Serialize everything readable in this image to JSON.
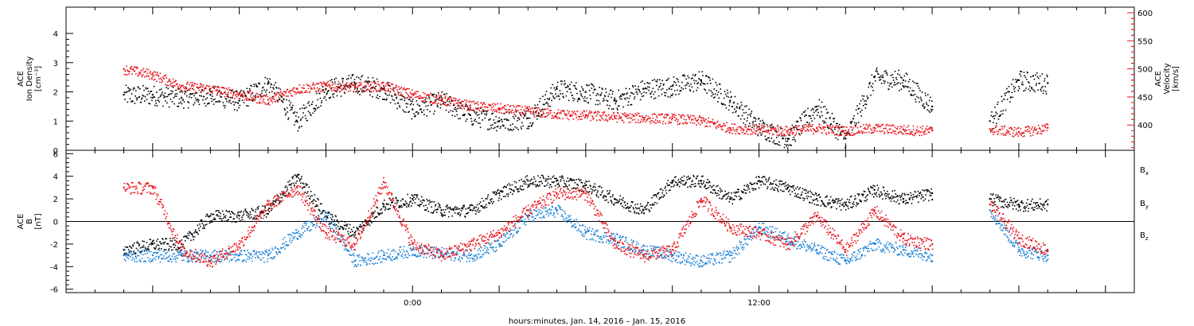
{
  "chart_data": [
    {
      "type": "scatter",
      "panel": "plasma",
      "left_axis": {
        "label_lines": [
          "ACE",
          "Ion Density",
          "[cm⁻³]"
        ],
        "ylim": [
          0,
          4.9
        ],
        "ticks": [
          0,
          1,
          2,
          3,
          4
        ],
        "tick_labels": [
          "0",
          "1",
          "2",
          "3",
          "4"
        ],
        "color": "#000000"
      },
      "right_axis": {
        "label_lines": [
          "ACE",
          "Velocity",
          "[km/s]"
        ],
        "ylim": [
          355,
          610
        ],
        "ticks": [
          400,
          450,
          500,
          550,
          600
        ],
        "tick_labels": [
          "400",
          "450",
          "500",
          "550",
          "600"
        ],
        "color": "#e8141b"
      },
      "series": [
        {
          "color": "#000000",
          "axis": "left",
          "x_hours": [
            -10,
            -9,
            -8,
            -7,
            -6,
            -5,
            -4,
            -3,
            -2,
            -1,
            0,
            1,
            2,
            3,
            4,
            5,
            6,
            7,
            8,
            9,
            10,
            11,
            12,
            13,
            14,
            15,
            16,
            17,
            18,
            19,
            20,
            21,
            22
          ],
          "y": [
            1.9,
            1.9,
            1.8,
            1.9,
            1.7,
            2.3,
            1.0,
            2.1,
            2.3,
            2.1,
            1.4,
            1.7,
            1.2,
            1.0,
            1.1,
            2.1,
            2.0,
            1.7,
            2.1,
            2.2,
            2.4,
            1.7,
            0.8,
            0.4,
            1.5,
            0.4,
            2.5,
            2.4,
            1.5,
            null,
            1.0,
            2.4,
            2.3
          ]
        },
        {
          "color": "#e8141b",
          "axis": "right",
          "x_hours": [
            -10,
            -9,
            -8,
            -7,
            -6,
            -5,
            -4,
            -3,
            -2,
            -1,
            0,
            1,
            2,
            3,
            4,
            5,
            6,
            7,
            8,
            9,
            10,
            11,
            12,
            13,
            14,
            15,
            16,
            17,
            18,
            19,
            20,
            21,
            22
          ],
          "y": [
            500,
            490,
            470,
            465,
            455,
            445,
            465,
            470,
            468,
            470,
            455,
            445,
            435,
            430,
            425,
            420,
            418,
            415,
            413,
            412,
            408,
            395,
            392,
            390,
            395,
            390,
            395,
            392,
            390,
            null,
            393,
            388,
            395
          ]
        }
      ]
    },
    {
      "type": "scatter",
      "panel": "magnetic-field",
      "left_axis": {
        "label_lines": [
          "ACE",
          "B",
          "[nT]"
        ],
        "ylim": [
          -6.3,
          6.3
        ],
        "ticks": [
          -6,
          -4,
          -2,
          0,
          2,
          4,
          6
        ],
        "tick_labels": [
          "-6",
          "-4",
          "-2",
          "0",
          "2",
          "4",
          "6"
        ],
        "color": "#000000"
      },
      "zero_line": true,
      "series": [
        {
          "name": "Bx",
          "color": "#000000",
          "x_hours": [
            -10,
            -9,
            -8,
            -7,
            -6,
            -5,
            -4,
            -3,
            -2,
            -1,
            0,
            1,
            2,
            3,
            4,
            5,
            6,
            7,
            8,
            9,
            10,
            11,
            12,
            13,
            14,
            15,
            16,
            17,
            18,
            19,
            20,
            21,
            22
          ],
          "y": [
            -2.5,
            -2.0,
            -2.0,
            0.5,
            0.5,
            1.0,
            4.0,
            0.5,
            -1.0,
            1.5,
            2.0,
            1.0,
            1.0,
            2.5,
            3.6,
            3.6,
            3.2,
            2.0,
            1.0,
            3.6,
            3.6,
            2.0,
            3.6,
            3.0,
            2.0,
            1.5,
            2.8,
            2.0,
            2.5,
            null,
            2.0,
            1.5,
            1.5
          ]
        },
        {
          "name": "By",
          "color": "#1a7fd6",
          "x_hours": [
            -10,
            -9,
            -8,
            -7,
            -6,
            -5,
            -4,
            -3,
            -2,
            -1,
            0,
            1,
            2,
            3,
            4,
            5,
            6,
            7,
            8,
            9,
            10,
            11,
            12,
            13,
            14,
            15,
            16,
            17,
            18,
            19,
            20,
            21,
            22
          ],
          "y": [
            -3.0,
            -3.0,
            -3.0,
            -3.0,
            -3.0,
            -3.0,
            -1.0,
            0.5,
            -3.5,
            -3.0,
            -2.5,
            -2.8,
            -3.0,
            -2.0,
            0.5,
            1.0,
            -1.0,
            -1.5,
            -2.5,
            -3.0,
            -3.5,
            -3.0,
            -0.5,
            -1.5,
            -2.5,
            -3.5,
            -2.0,
            -2.5,
            -3.0,
            null,
            1.0,
            -2.5,
            -3.0
          ]
        },
        {
          "name": "Bz",
          "color": "#e8141b",
          "x_hours": [
            -10,
            -9,
            -8,
            -7,
            -6,
            -5,
            -4,
            -3,
            -2,
            -1,
            0,
            1,
            2,
            3,
            4,
            5,
            6,
            7,
            8,
            9,
            10,
            11,
            12,
            13,
            14,
            15,
            16,
            17,
            18,
            19,
            20,
            21,
            22
          ],
          "y": [
            3.0,
            3.0,
            -2.5,
            -3.5,
            -2.0,
            1.5,
            3.0,
            -1.0,
            -2.0,
            3.5,
            -2.0,
            -3.0,
            -2.0,
            -1.0,
            1.0,
            2.5,
            2.5,
            -2.0,
            -3.0,
            -2.5,
            2.0,
            -0.5,
            -1.0,
            -2.0,
            0.5,
            -2.5,
            1.0,
            -1.5,
            -2.0,
            null,
            1.5,
            -1.5,
            -2.5
          ]
        }
      ],
      "legend": {
        "placement": "right",
        "items": [
          {
            "base": "B",
            "sub": "x",
            "color": "#000000"
          },
          {
            "base": "B",
            "sub": "y",
            "color": "#1a7fd6"
          },
          {
            "base": "B",
            "sub": "z",
            "color": "#e8141b"
          }
        ]
      }
    }
  ],
  "time_axis": {
    "range_hours": [
      -12,
      25
    ],
    "tick_labels": [
      {
        "hour": 0,
        "label": "0:00"
      },
      {
        "hour": 12,
        "label": "12:00"
      }
    ],
    "title": "hours:minutes, Jan. 14, 2016 – Jan. 15, 2016"
  }
}
